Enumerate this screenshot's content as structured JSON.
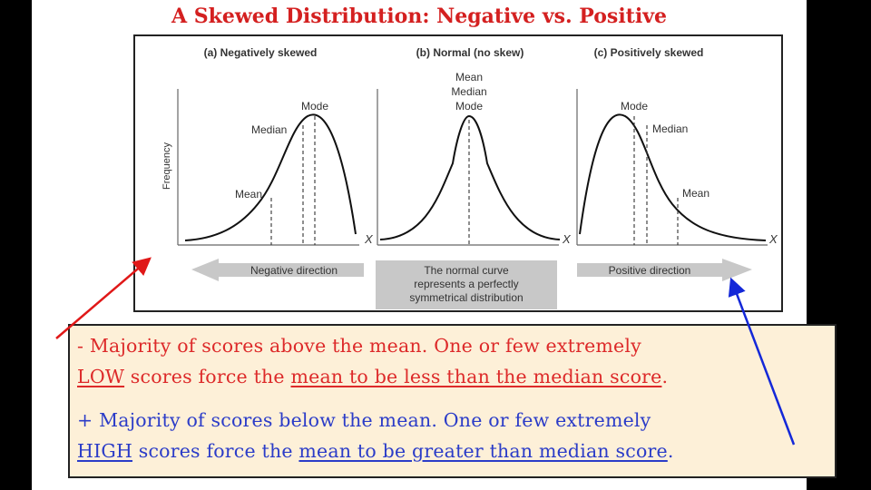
{
  "title": "A Skewed Distribution: Negative vs. Positive",
  "figure": {
    "panels": [
      {
        "label": "(a) Negatively skewed",
        "markers": [
          "Mode",
          "Median",
          "Mean"
        ]
      },
      {
        "label": "(b) Normal (no skew)",
        "markers": [
          "Mean",
          "Median",
          "Mode"
        ]
      },
      {
        "label": "(c) Positively skewed",
        "markers": [
          "Mode",
          "Median",
          "Mean"
        ]
      }
    ],
    "y_axis_label": "Frequency",
    "x_axis_symbol": "X",
    "negative_direction": "Negative direction",
    "normal_caption": [
      "The normal curve",
      "represents a perfectly",
      "symmetrical distribution"
    ],
    "positive_direction": "Positive direction"
  },
  "notes": {
    "negative": {
      "prefix": "- ",
      "part1": "Majority of scores above the mean. One or few extremely",
      "low_word": "LOW",
      "part2": " scores force the ",
      "underlined": "mean to be less than the median score",
      "end": "."
    },
    "positive": {
      "prefix": "+ ",
      "part1": "Majority of scores below the mean. One or few extremely",
      "high_word": "HIGH",
      "part2": " scores force the ",
      "underlined": "mean to be greater than median score",
      "end": "."
    }
  },
  "colors": {
    "title": "#d42020",
    "negative": "#dd2a2a",
    "positive": "#2b3cc8",
    "note_bg": "#fdf0d8",
    "arrow_gray": "#c8c8c8"
  }
}
